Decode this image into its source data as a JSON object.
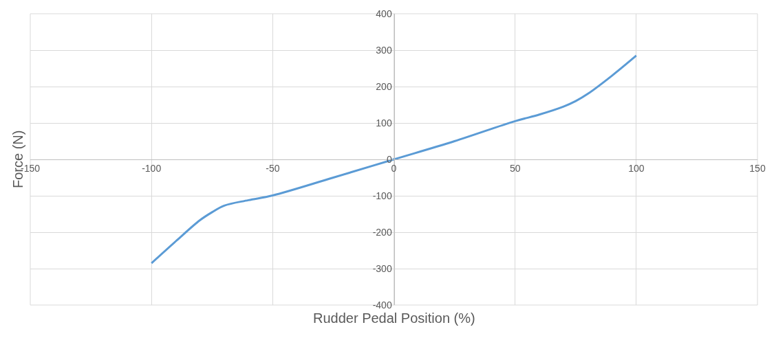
{
  "chart_data": {
    "type": "line",
    "xlabel": "Rudder Pedal Position (%)",
    "ylabel": "Force (N)",
    "x": [
      -100,
      -90,
      -80,
      -75,
      -70,
      -60,
      -50,
      -25,
      0,
      25,
      50,
      60,
      70,
      75,
      80,
      90,
      100
    ],
    "series": [
      {
        "color": "#5b9bd5",
        "values": [
          -285,
          -225,
          -167,
          -145,
          -127,
          -112,
          -99,
          -50,
          0,
          50,
          105,
          123,
          145,
          160,
          180,
          230,
          285
        ]
      }
    ],
    "xlim": [
      -150,
      150
    ],
    "xticks": [
      -150,
      -100,
      -50,
      0,
      50,
      100,
      150
    ],
    "ylim": [
      -400,
      400
    ],
    "yticks": [
      -400,
      -300,
      -200,
      -100,
      0,
      100,
      200,
      300,
      400
    ],
    "grid": true,
    "legend": false,
    "marker": "none",
    "line_style": "solid"
  }
}
